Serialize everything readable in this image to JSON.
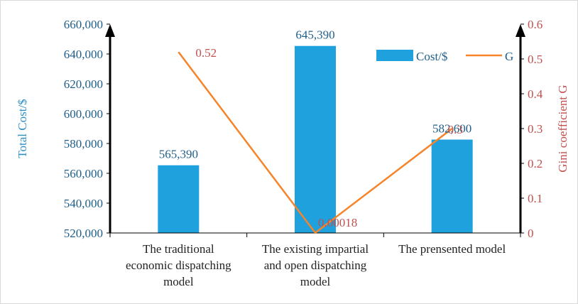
{
  "chart_data": {
    "type": "bar",
    "categories": [
      "The traditional economic dispatching model",
      "The existing impartial and open  dispatching model",
      "The prensented model"
    ],
    "category_label_lines": [
      [
        "The traditional",
        "economic dispatching",
        "model"
      ],
      [
        "The existing impartial",
        "and open  dispatching",
        "model"
      ],
      [
        "The prensented model"
      ]
    ],
    "series": [
      {
        "name": "Cost/$",
        "type": "bar",
        "axis": "left",
        "color": "#1ea1dc",
        "values": [
          565390,
          645390,
          582600
        ],
        "value_labels": [
          "565,390",
          "645,390",
          "582,600"
        ]
      },
      {
        "name": "G",
        "type": "line",
        "axis": "right",
        "color": "#f5842a",
        "values": [
          0.52,
          0.00018,
          0.3
        ],
        "value_labels": [
          "0.52",
          "0.00018",
          "0.3"
        ]
      }
    ],
    "ylabel": "Total Cost/$",
    "y2label": "Gini  coefficient G",
    "ylim": [
      520000,
      660000
    ],
    "y2lim": [
      0,
      0.6
    ],
    "yticks": [
      "520,000",
      "540,000",
      "560,000",
      "580,000",
      "600,000",
      "620,000",
      "640,000",
      "660,000"
    ],
    "y2ticks": [
      "0",
      "0.1",
      "0.2",
      "0.3",
      "0.4",
      "0.5",
      "0.6"
    ],
    "legend": {
      "position": "top-right",
      "items": [
        "Cost/$",
        "G"
      ]
    },
    "grid": false
  }
}
